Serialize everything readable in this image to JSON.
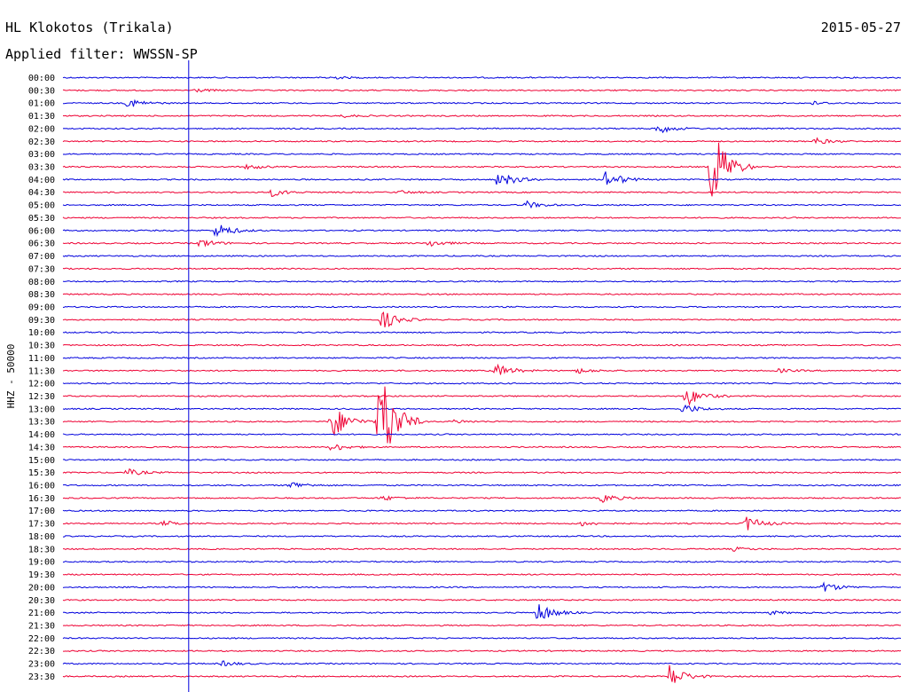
{
  "header": {
    "station": "HL Klokotos (Trikala)",
    "date": "2015-05-27",
    "filter": "Applied filter: WWSSN-SP"
  },
  "chart_data": {
    "type": "line",
    "title": "HL Klokotos (Trikala)",
    "subtitle": "Applied filter: WWSSN-SP",
    "date": "2015-05-27",
    "ylabel": "HHZ - 50000",
    "y_tick_labels": [
      "00:00",
      "00:30",
      "01:00",
      "01:30",
      "02:00",
      "02:30",
      "03:00",
      "03:30",
      "04:00",
      "04:30",
      "05:00",
      "05:30",
      "06:00",
      "06:30",
      "07:00",
      "07:30",
      "08:00",
      "08:30",
      "09:00",
      "09:30",
      "10:00",
      "10:30",
      "11:00",
      "11:30",
      "12:00",
      "12:30",
      "13:00",
      "13:30",
      "14:00",
      "14:30",
      "15:00",
      "15:30",
      "16:00",
      "16:30",
      "17:00",
      "17:30",
      "18:00",
      "18:30",
      "19:00",
      "19:30",
      "20:00",
      "20:30",
      "21:00",
      "21:30",
      "22:00",
      "22:30",
      "23:00",
      "23:30"
    ],
    "trace_minutes": 30,
    "x_unit": "minutes within trace",
    "series_colors": [
      "#0000dd",
      "#ee0033"
    ],
    "time_marker_minute": 4.5,
    "events": [
      {
        "t": "00:00",
        "minute": 9.5,
        "amp": 2
      },
      {
        "t": "00:30",
        "minute": 4.7,
        "amp": 2
      },
      {
        "t": "01:00",
        "minute": 2.3,
        "amp": 6
      },
      {
        "t": "01:00",
        "minute": 26.8,
        "amp": 2
      },
      {
        "t": "01:30",
        "minute": 10.0,
        "amp": 1.5
      },
      {
        "t": "02:00",
        "minute": 21.2,
        "amp": 7
      },
      {
        "t": "02:30",
        "minute": 26.9,
        "amp": 4
      },
      {
        "t": "03:30",
        "minute": 6.6,
        "amp": 3
      },
      {
        "t": "03:30",
        "minute": 23.2,
        "amp": 55
      },
      {
        "t": "04:00",
        "minute": 15.6,
        "amp": 10
      },
      {
        "t": "04:00",
        "minute": 19.4,
        "amp": 12
      },
      {
        "t": "04:30",
        "minute": 7.4,
        "amp": 5
      },
      {
        "t": "04:30",
        "minute": 12.0,
        "amp": 2
      },
      {
        "t": "05:00",
        "minute": 16.6,
        "amp": 4
      },
      {
        "t": "06:00",
        "minute": 5.5,
        "amp": 9
      },
      {
        "t": "06:30",
        "minute": 4.9,
        "amp": 5
      },
      {
        "t": "06:30",
        "minute": 13.1,
        "amp": 4
      },
      {
        "t": "09:30",
        "minute": 11.4,
        "amp": 12
      },
      {
        "t": "11:30",
        "minute": 15.5,
        "amp": 8
      },
      {
        "t": "11:30",
        "minute": 18.4,
        "amp": 3
      },
      {
        "t": "11:30",
        "minute": 25.6,
        "amp": 2
      },
      {
        "t": "12:30",
        "minute": 22.3,
        "amp": 12
      },
      {
        "t": "13:00",
        "minute": 22.2,
        "amp": 6
      },
      {
        "t": "13:30",
        "minute": 9.6,
        "amp": 22
      },
      {
        "t": "13:30",
        "minute": 11.3,
        "amp": 75
      },
      {
        "t": "13:30",
        "minute": 14.0,
        "amp": 2
      },
      {
        "t": "14:30",
        "minute": 9.6,
        "amp": 5
      },
      {
        "t": "15:30",
        "minute": 2.3,
        "amp": 4
      },
      {
        "t": "16:00",
        "minute": 8.1,
        "amp": 5
      },
      {
        "t": "16:30",
        "minute": 11.4,
        "amp": 3
      },
      {
        "t": "16:30",
        "minute": 19.3,
        "amp": 5
      },
      {
        "t": "17:30",
        "minute": 3.6,
        "amp": 3
      },
      {
        "t": "17:30",
        "minute": 18.5,
        "amp": 3
      },
      {
        "t": "17:30",
        "minute": 24.4,
        "amp": 10
      },
      {
        "t": "18:30",
        "minute": 24.0,
        "amp": 2
      },
      {
        "t": "20:00",
        "minute": 27.2,
        "amp": 6
      },
      {
        "t": "21:00",
        "minute": 17.0,
        "amp": 12
      },
      {
        "t": "21:00",
        "minute": 25.3,
        "amp": 2
      },
      {
        "t": "23:00",
        "minute": 5.7,
        "amp": 3
      },
      {
        "t": "23:30",
        "minute": 21.7,
        "amp": 14
      }
    ]
  }
}
